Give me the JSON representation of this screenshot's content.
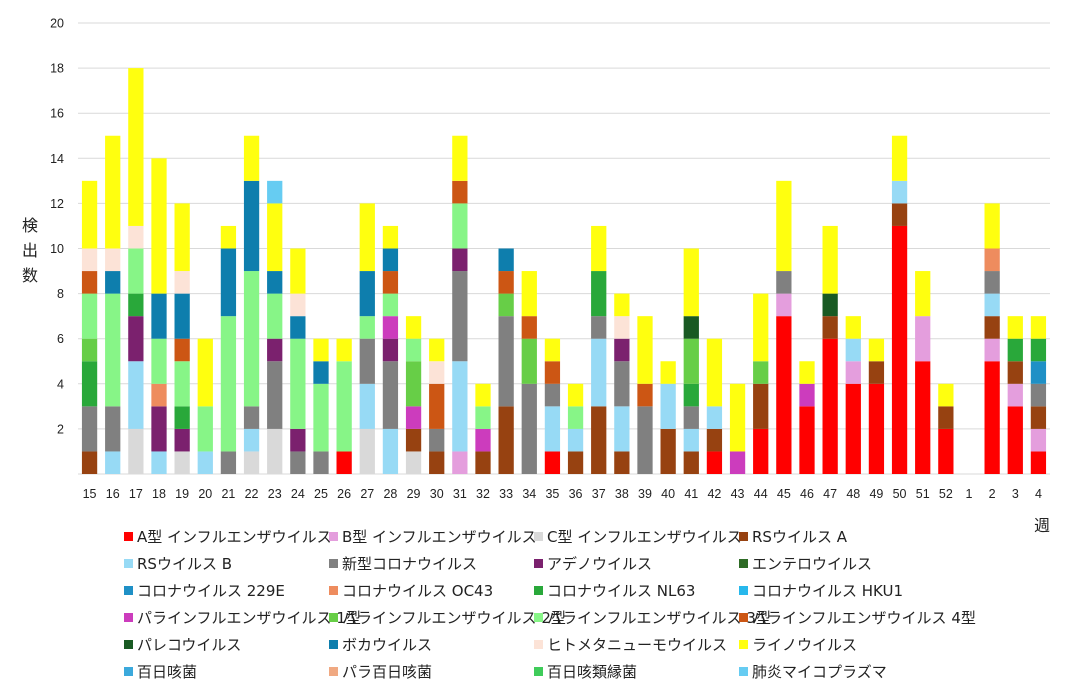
{
  "chart_data": {
    "type": "bar",
    "stacked": true,
    "title": "",
    "xlabel": "週",
    "ylabel": "検出数",
    "ylim": [
      0,
      20
    ],
    "yticks": [
      2,
      4,
      6,
      8,
      10,
      12,
      14,
      16,
      18,
      20
    ],
    "grid": true,
    "legend_position": "bottom",
    "categories": [
      "15",
      "16",
      "17",
      "18",
      "19",
      "20",
      "21",
      "22",
      "23",
      "24",
      "25",
      "26",
      "27",
      "28",
      "29",
      "30",
      "31",
      "32",
      "33",
      "34",
      "35",
      "36",
      "37",
      "38",
      "39",
      "40",
      "41",
      "42",
      "43",
      "44",
      "45",
      "46",
      "47",
      "48",
      "49",
      "50",
      "51",
      "52",
      "1",
      "2",
      "3",
      "4"
    ],
    "series": [
      {
        "name": "A型 インフルエンザウイルス",
        "color": "#FF0000",
        "values": [
          0,
          0,
          0,
          0,
          0,
          0,
          0,
          0,
          0,
          0,
          0,
          1,
          0,
          0,
          0,
          0,
          0,
          0,
          0,
          0,
          1,
          0,
          0,
          0,
          0,
          0,
          0,
          1,
          0,
          2,
          7,
          3,
          6,
          4,
          4,
          11,
          5,
          2,
          0,
          5,
          3,
          1
        ]
      },
      {
        "name": "B型 インフルエンザウイルス",
        "color": "#E49EDD",
        "values": [
          0,
          0,
          0,
          0,
          0,
          0,
          0,
          0,
          0,
          0,
          0,
          0,
          0,
          0,
          0,
          0,
          1,
          0,
          0,
          0,
          0,
          0,
          0,
          0,
          0,
          0,
          0,
          0,
          0,
          0,
          1,
          0,
          0,
          1,
          0,
          0,
          2,
          0,
          0,
          1,
          1,
          1
        ]
      },
      {
        "name": "C型 インフルエンザウイルス",
        "color": "#D9D9D9",
        "values": [
          0,
          0,
          2,
          0,
          1,
          0,
          0,
          1,
          2,
          0,
          0,
          0,
          2,
          0,
          1,
          0,
          0,
          0,
          0,
          0,
          0,
          0,
          0,
          0,
          0,
          0,
          0,
          0,
          0,
          0,
          0,
          0,
          0,
          0,
          0,
          0,
          0,
          0,
          0,
          0,
          0,
          0
        ]
      },
      {
        "name": "RSウイルス A",
        "color": "#974211",
        "values": [
          1,
          0,
          0,
          0,
          0,
          0,
          0,
          0,
          0,
          0,
          0,
          0,
          0,
          0,
          1,
          1,
          0,
          1,
          3,
          0,
          0,
          1,
          3,
          1,
          0,
          2,
          1,
          1,
          0,
          2,
          0,
          0,
          1,
          0,
          1,
          1,
          0,
          1,
          0,
          1,
          1,
          1
        ]
      },
      {
        "name": "RSウイルス B",
        "color": "#97DAF5",
        "values": [
          0,
          1,
          3,
          1,
          0,
          1,
          0,
          1,
          0,
          0,
          0,
          0,
          2,
          2,
          0,
          0,
          4,
          0,
          0,
          0,
          2,
          1,
          3,
          2,
          0,
          2,
          1,
          1,
          0,
          0,
          0,
          0,
          0,
          1,
          0,
          1,
          0,
          0,
          0,
          1,
          0,
          0
        ]
      },
      {
        "name": "新型コロナウイルス",
        "color": "#808080",
        "values": [
          2,
          2,
          0,
          0,
          0,
          0,
          1,
          1,
          3,
          1,
          1,
          0,
          2,
          3,
          0,
          1,
          4,
          0,
          4,
          4,
          1,
          0,
          1,
          2,
          3,
          0,
          1,
          0,
          0,
          0,
          1,
          0,
          0,
          0,
          0,
          0,
          0,
          0,
          0,
          1,
          0,
          1
        ]
      },
      {
        "name": "アデノウイルス",
        "color": "#7B216E",
        "values": [
          0,
          0,
          2,
          2,
          1,
          0,
          0,
          0,
          1,
          1,
          0,
          0,
          0,
          1,
          0,
          0,
          1,
          0,
          0,
          0,
          0,
          0,
          0,
          1,
          0,
          0,
          0,
          0,
          0,
          0,
          0,
          0,
          0,
          0,
          0,
          0,
          0,
          0,
          0,
          0,
          0,
          0
        ]
      },
      {
        "name": "エンテロウイルス",
        "color": "#2E6B25",
        "values": [
          0,
          0,
          0,
          0,
          0,
          0,
          0,
          0,
          0,
          0,
          0,
          0,
          0,
          0,
          0,
          0,
          0,
          0,
          0,
          0,
          0,
          0,
          0,
          0,
          0,
          0,
          0,
          0,
          0,
          0,
          0,
          0,
          0,
          0,
          0,
          0,
          0,
          0,
          0,
          0,
          0,
          0
        ]
      },
      {
        "name": "コロナウイルス 229E",
        "color": "#1F90C6",
        "values": [
          0,
          0,
          0,
          0,
          0,
          0,
          0,
          0,
          0,
          0,
          0,
          0,
          0,
          0,
          0,
          0,
          0,
          0,
          0,
          0,
          0,
          0,
          0,
          0,
          0,
          0,
          0,
          0,
          0,
          0,
          0,
          0,
          0,
          0,
          0,
          0,
          0,
          0,
          0,
          0,
          0,
          1
        ]
      },
      {
        "name": "コロナウイルス OC43",
        "color": "#EE8C5E",
        "values": [
          0,
          0,
          0,
          1,
          0,
          0,
          0,
          0,
          0,
          0,
          0,
          0,
          0,
          0,
          0,
          0,
          0,
          0,
          0,
          0,
          0,
          0,
          0,
          0,
          0,
          0,
          0,
          0,
          0,
          0,
          0,
          0,
          0,
          0,
          0,
          0,
          0,
          0,
          0,
          1,
          0,
          0
        ]
      },
      {
        "name": "コロナウイルス NL63",
        "color": "#29A83A",
        "values": [
          2,
          0,
          1,
          0,
          1,
          0,
          0,
          0,
          0,
          0,
          0,
          0,
          0,
          0,
          0,
          0,
          0,
          0,
          0,
          0,
          0,
          0,
          2,
          0,
          0,
          0,
          1,
          0,
          0,
          0,
          0,
          0,
          0,
          0,
          0,
          0,
          0,
          0,
          0,
          0,
          1,
          1
        ]
      },
      {
        "name": "コロナウイルス HKU1",
        "color": "#27B8EC",
        "values": [
          0,
          0,
          0,
          0,
          0,
          0,
          0,
          0,
          0,
          0,
          0,
          0,
          0,
          0,
          0,
          0,
          0,
          0,
          0,
          0,
          0,
          0,
          0,
          0,
          0,
          0,
          0,
          0,
          0,
          0,
          0,
          0,
          0,
          0,
          0,
          0,
          0,
          0,
          0,
          0,
          0,
          0
        ]
      },
      {
        "name": "パラインフルエンザウイルス 1型",
        "color": "#CC3CBD",
        "values": [
          0,
          0,
          0,
          0,
          0,
          0,
          0,
          0,
          0,
          0,
          0,
          0,
          0,
          1,
          1,
          0,
          0,
          1,
          0,
          0,
          0,
          0,
          0,
          0,
          0,
          0,
          0,
          0,
          1,
          0,
          0,
          1,
          0,
          0,
          0,
          0,
          0,
          0,
          0,
          0,
          0,
          0
        ]
      },
      {
        "name": "パラインフルエンザウイルス 2型",
        "color": "#67CE47",
        "values": [
          1,
          0,
          0,
          0,
          0,
          0,
          0,
          0,
          0,
          0,
          0,
          0,
          0,
          0,
          2,
          0,
          0,
          0,
          1,
          2,
          0,
          0,
          0,
          0,
          0,
          0,
          2,
          0,
          0,
          1,
          0,
          0,
          0,
          0,
          0,
          0,
          0,
          0,
          0,
          0,
          0,
          0
        ]
      },
      {
        "name": "パラインフルエンザウイルス 3型",
        "color": "#87F587",
        "values": [
          2,
          5,
          2,
          2,
          2,
          2,
          6,
          6,
          2,
          4,
          3,
          4,
          1,
          1,
          1,
          0,
          2,
          1,
          0,
          0,
          0,
          1,
          0,
          0,
          0,
          0,
          0,
          0,
          0,
          0,
          0,
          0,
          0,
          0,
          0,
          0,
          0,
          0,
          0,
          0,
          0,
          0
        ]
      },
      {
        "name": "パラインフルエンザウイルス 4型",
        "color": "#CC5614",
        "values": [
          1,
          0,
          0,
          0,
          1,
          0,
          0,
          0,
          0,
          0,
          0,
          0,
          0,
          1,
          0,
          2,
          1,
          0,
          1,
          1,
          1,
          0,
          0,
          0,
          1,
          0,
          0,
          0,
          0,
          0,
          0,
          0,
          0,
          0,
          0,
          0,
          0,
          0,
          0,
          0,
          0,
          0
        ]
      },
      {
        "name": "パレコウイルス",
        "color": "#195A23",
        "values": [
          0,
          0,
          0,
          0,
          0,
          0,
          0,
          0,
          0,
          0,
          0,
          0,
          0,
          0,
          0,
          0,
          0,
          0,
          0,
          0,
          0,
          0,
          0,
          0,
          0,
          0,
          1,
          0,
          0,
          0,
          0,
          0,
          1,
          0,
          0,
          0,
          0,
          0,
          0,
          0,
          0,
          0
        ]
      },
      {
        "name": "ボカウイルス",
        "color": "#0E7EAD",
        "values": [
          0,
          1,
          0,
          2,
          2,
          0,
          3,
          4,
          1,
          1,
          1,
          0,
          2,
          1,
          0,
          0,
          0,
          0,
          1,
          0,
          0,
          0,
          0,
          0,
          0,
          0,
          0,
          0,
          0,
          0,
          0,
          0,
          0,
          0,
          0,
          0,
          0,
          0,
          0,
          0,
          0,
          0
        ]
      },
      {
        "name": "ヒトメタニューモウイルス",
        "color": "#FCE3D7",
        "values": [
          1,
          1,
          1,
          0,
          1,
          0,
          0,
          0,
          0,
          1,
          0,
          0,
          0,
          0,
          0,
          1,
          0,
          0,
          0,
          0,
          0,
          0,
          0,
          1,
          0,
          0,
          0,
          0,
          0,
          0,
          0,
          0,
          0,
          0,
          0,
          0,
          0,
          0,
          0,
          0,
          0,
          0
        ]
      },
      {
        "name": "ライノウイルス",
        "color": "#FFFF0F",
        "values": [
          3,
          5,
          7,
          6,
          3,
          3,
          1,
          2,
          3,
          2,
          1,
          1,
          3,
          1,
          1,
          1,
          2,
          1,
          0,
          2,
          1,
          1,
          2,
          1,
          3,
          1,
          3,
          3,
          3,
          3,
          4,
          1,
          3,
          1,
          1,
          2,
          2,
          1,
          0,
          2,
          1,
          1
        ]
      },
      {
        "name": "百日咳菌",
        "color": "#3BA9DC",
        "values": [
          0,
          0,
          0,
          0,
          0,
          0,
          0,
          0,
          0,
          0,
          0,
          0,
          0,
          0,
          0,
          0,
          0,
          0,
          0,
          0,
          0,
          0,
          0,
          0,
          0,
          0,
          0,
          0,
          0,
          0,
          0,
          0,
          0,
          0,
          0,
          0,
          0,
          0,
          0,
          0,
          0,
          0
        ]
      },
      {
        "name": "パラ百日咳菌",
        "color": "#F0A982",
        "values": [
          0,
          0,
          0,
          0,
          0,
          0,
          0,
          0,
          0,
          0,
          0,
          0,
          0,
          0,
          0,
          0,
          0,
          0,
          0,
          0,
          0,
          0,
          0,
          0,
          0,
          0,
          0,
          0,
          0,
          0,
          0,
          0,
          0,
          0,
          0,
          0,
          0,
          0,
          0,
          0,
          0,
          0
        ]
      },
      {
        "name": "百日咳類縁菌",
        "color": "#3FCC5A",
        "values": [
          0,
          0,
          0,
          0,
          0,
          0,
          0,
          0,
          0,
          0,
          0,
          0,
          0,
          0,
          0,
          0,
          0,
          0,
          0,
          0,
          0,
          0,
          0,
          0,
          0,
          0,
          0,
          0,
          0,
          0,
          0,
          0,
          0,
          0,
          0,
          0,
          0,
          0,
          0,
          0,
          0,
          0
        ]
      },
      {
        "name": "肺炎マイコプラズマ",
        "color": "#66CCF2",
        "values": [
          0,
          0,
          0,
          0,
          0,
          0,
          0,
          0,
          1,
          0,
          0,
          0,
          0,
          0,
          0,
          0,
          0,
          0,
          0,
          0,
          0,
          0,
          0,
          0,
          0,
          0,
          0,
          0,
          0,
          0,
          0,
          0,
          0,
          0,
          0,
          0,
          0,
          0,
          0,
          0,
          0,
          0
        ]
      }
    ]
  }
}
